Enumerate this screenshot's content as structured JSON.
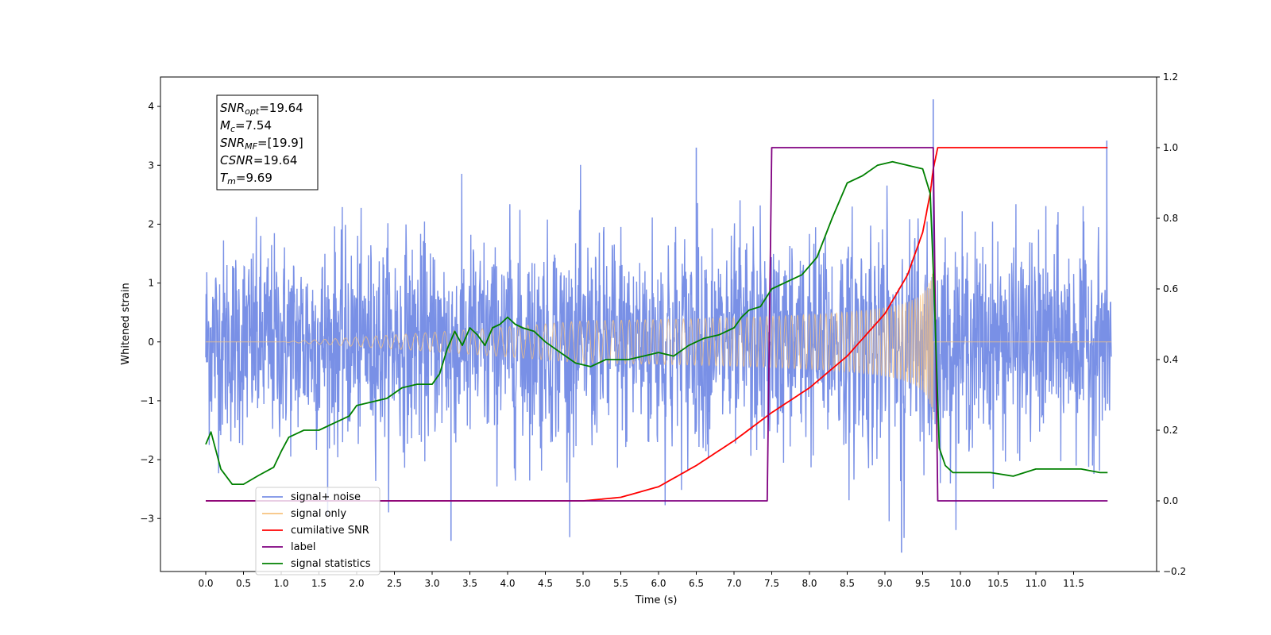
{
  "chart_data": {
    "type": "line",
    "xlabel": "Time (s)",
    "ylabel_left": "Whitened strain",
    "xlim": [
      -0.6,
      12.6
    ],
    "ylim_left": [
      -3.9,
      4.5
    ],
    "ylim_right": [
      -0.2,
      1.2
    ],
    "xticks": [
      "0.0",
      "0.5",
      "1.0",
      "1.5",
      "2.0",
      "2.5",
      "3.0",
      "3.5",
      "4.0",
      "4.5",
      "5.0",
      "5.5",
      "6.0",
      "6.5",
      "7.0",
      "7.5",
      "8.0",
      "8.5",
      "9.0",
      "9.5",
      "10.0",
      "10.5",
      "11.0",
      "11.5"
    ],
    "yticks_left": [
      "−3",
      "−2",
      "−1",
      "0",
      "1",
      "2",
      "3",
      "4"
    ],
    "yticks_right": [
      "−0.2",
      "0.0",
      "0.2",
      "0.4",
      "0.6",
      "0.8",
      "1.0",
      "1.2"
    ],
    "stats_box": [
      {
        "sym": "SNR",
        "sub": "opt",
        "val": "=19.64"
      },
      {
        "sym": "M",
        "sub": "c",
        "val": "=7.54"
      },
      {
        "sym": "SNR",
        "sub": "MF",
        "val": "=[19.9]"
      },
      {
        "sym": "CSNR",
        "sub": "",
        "val": "=19.64"
      },
      {
        "sym": "T",
        "sub": "m",
        "val": "=9.69"
      }
    ],
    "legend": {
      "placement": "lower left",
      "entries": [
        {
          "label": "signal+ noise",
          "color": "#7990e6"
        },
        {
          "label": "signal only",
          "color": "#f7c27e"
        },
        {
          "label": "cumilative SNR",
          "color": "#ff0000"
        },
        {
          "label": "label",
          "color": "#800080"
        },
        {
          "label": "signal statistics",
          "color": "#008000"
        }
      ]
    },
    "series": [
      {
        "name": "signal+ noise",
        "axis": "left",
        "color": "#7990e6",
        "t_range": [
          0.0,
          12.0
        ],
        "description": "random gaussian noise band",
        "noise_std": 0.85,
        "peaks": [
          [
            9.64,
            4.12
          ],
          [
            11.94,
            3.42
          ],
          [
            9.22,
            -3.58
          ],
          [
            6.5,
            3.3
          ],
          [
            3.25,
            -3.38
          ]
        ]
      },
      {
        "name": "signal only",
        "axis": "left",
        "color": "#f7c27e",
        "chirp": {
          "t_start": 4.5,
          "t_merge": 9.64,
          "peak_amplitude": 1.4
        }
      },
      {
        "name": "cumilative SNR",
        "axis": "right",
        "color": "#ff0000",
        "x": [
          0.0,
          5.0,
          5.5,
          6.0,
          6.5,
          7.0,
          7.5,
          8.0,
          8.5,
          9.0,
          9.3,
          9.5,
          9.6,
          9.64,
          9.7,
          11.95
        ],
        "y": [
          0.0,
          0.0,
          0.01,
          0.04,
          0.1,
          0.17,
          0.25,
          0.32,
          0.41,
          0.53,
          0.64,
          0.76,
          0.87,
          0.94,
          1.0,
          1.0
        ]
      },
      {
        "name": "label",
        "axis": "right",
        "color": "#800080",
        "x": [
          0.0,
          7.44,
          7.5,
          9.64,
          9.7,
          11.95
        ],
        "y": [
          0.0,
          0.0,
          1.0,
          1.0,
          0.0,
          0.0
        ]
      },
      {
        "name": "signal statistics",
        "axis": "right",
        "color": "#008000",
        "x": [
          0.0,
          0.07,
          0.2,
          0.35,
          0.5,
          0.7,
          0.9,
          1.0,
          1.1,
          1.3,
          1.5,
          1.7,
          1.9,
          2.0,
          2.2,
          2.4,
          2.6,
          2.8,
          3.0,
          3.1,
          3.2,
          3.3,
          3.4,
          3.5,
          3.6,
          3.7,
          3.8,
          3.9,
          4.0,
          4.1,
          4.2,
          4.35,
          4.5,
          4.7,
          4.9,
          5.1,
          5.3,
          5.6,
          5.8,
          6.0,
          6.2,
          6.4,
          6.6,
          6.8,
          7.0,
          7.1,
          7.2,
          7.35,
          7.5,
          7.7,
          7.9,
          8.1,
          8.3,
          8.5,
          8.7,
          8.9,
          9.1,
          9.3,
          9.5,
          9.6,
          9.65,
          9.72,
          9.8,
          9.9,
          10.1,
          10.4,
          10.7,
          11.0,
          11.3,
          11.6,
          11.85,
          11.95
        ],
        "y": [
          0.16,
          0.195,
          0.09,
          0.047,
          0.047,
          0.072,
          0.095,
          0.14,
          0.18,
          0.2,
          0.2,
          0.22,
          0.24,
          0.27,
          0.28,
          0.29,
          0.32,
          0.33,
          0.33,
          0.36,
          0.43,
          0.48,
          0.44,
          0.49,
          0.47,
          0.44,
          0.49,
          0.5,
          0.52,
          0.5,
          0.49,
          0.48,
          0.45,
          0.42,
          0.39,
          0.38,
          0.4,
          0.4,
          0.41,
          0.42,
          0.41,
          0.44,
          0.46,
          0.47,
          0.49,
          0.52,
          0.54,
          0.55,
          0.6,
          0.62,
          0.64,
          0.69,
          0.8,
          0.9,
          0.92,
          0.95,
          0.96,
          0.95,
          0.94,
          0.87,
          0.6,
          0.15,
          0.1,
          0.08,
          0.08,
          0.08,
          0.07,
          0.09,
          0.09,
          0.09,
          0.08,
          0.08
        ]
      }
    ]
  }
}
